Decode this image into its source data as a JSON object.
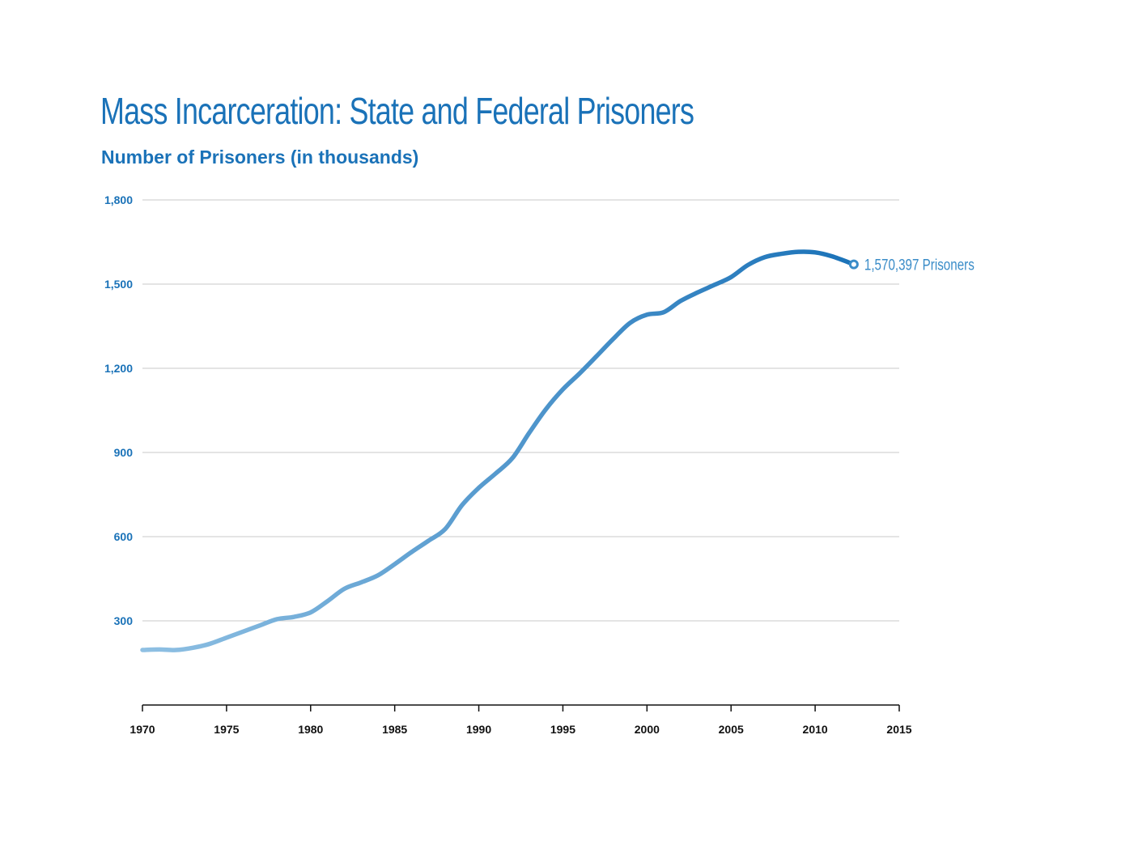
{
  "chart_data": {
    "type": "line",
    "title": "Mass Incarceration: State and Federal Prisoners",
    "subtitle": "Number of Prisoners (in thousands)",
    "xlabel": "",
    "ylabel": "Number of Prisoners (in thousands)",
    "xlim": [
      1970,
      2015
    ],
    "ylim": [
      0,
      1800
    ],
    "x_ticks": [
      1970,
      1975,
      1980,
      1985,
      1990,
      1995,
      2000,
      2005,
      2010,
      2015
    ],
    "x_tick_labels": [
      "1970",
      "1975",
      "1980",
      "1985",
      "1990",
      "1995",
      "2000",
      "2005",
      "2010",
      "2015"
    ],
    "y_ticks": [
      300,
      600,
      900,
      1200,
      1500,
      1800
    ],
    "y_tick_labels": [
      "300",
      "600",
      "900",
      "1,200",
      "1,500",
      "1,800"
    ],
    "grid": true,
    "series": [
      {
        "name": "State and Federal Prisoners",
        "x": [
          1970,
          1971,
          1972,
          1973,
          1974,
          1975,
          1976,
          1977,
          1978,
          1979,
          1980,
          1981,
          1982,
          1983,
          1984,
          1985,
          1986,
          1987,
          1988,
          1989,
          1990,
          1991,
          1992,
          1993,
          1994,
          1995,
          1996,
          1997,
          1998,
          1999,
          2000,
          2001,
          2002,
          2003,
          2004,
          2005,
          2006,
          2007,
          2008,
          2009,
          2010,
          2011,
          2012.3
        ],
        "values": [
          196,
          198,
          196,
          204,
          218,
          240,
          262,
          284,
          306,
          314,
          330,
          370,
          414,
          437,
          462,
          502,
          545,
          585,
          627,
          712,
          774,
          825,
          880,
          970,
          1055,
          1125,
          1182,
          1243,
          1305,
          1362,
          1391,
          1400,
          1440,
          1470,
          1497,
          1525,
          1568,
          1596,
          1608,
          1615,
          1613,
          1599,
          1570.397
        ]
      }
    ],
    "annotation": {
      "x": 2012.3,
      "y": 1570.397,
      "text": "1,570,397 Prisoners"
    },
    "colors": {
      "line_start": "#8fc0e3",
      "line_end": "#1a72b8",
      "grid": "#c8c8c8",
      "axis": "#111111"
    }
  }
}
